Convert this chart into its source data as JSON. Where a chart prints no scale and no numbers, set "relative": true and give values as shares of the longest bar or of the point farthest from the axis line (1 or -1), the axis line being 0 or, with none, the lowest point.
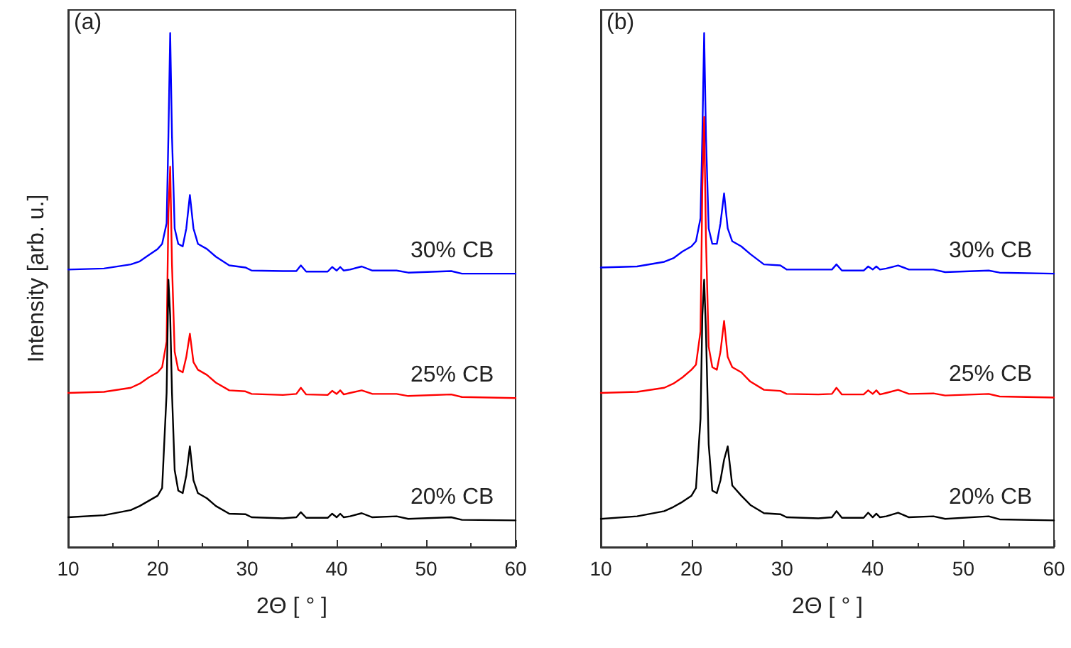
{
  "chart_data": [
    {
      "type": "line",
      "relative": true,
      "annotations": [
        "(a)"
      ],
      "xlabel": "2Θ [ ° ]",
      "ylabel": "Intensity [arb. u.]",
      "xlim": [
        10,
        60
      ],
      "xticks": [
        10,
        20,
        30,
        40,
        50,
        60
      ],
      "grid": false,
      "legend": false,
      "marker": "none",
      "line_style": "solid",
      "tick_labels": "x",
      "x": [
        10,
        14,
        17,
        18,
        19,
        20,
        20.5,
        21,
        21.2,
        21.4,
        21.6,
        21.9,
        22.3,
        22.8,
        23.2,
        23.6,
        24,
        24.5,
        25.5,
        26.5,
        28,
        29.8,
        30.5,
        34,
        35.5,
        36,
        36.6,
        39,
        39.5,
        40,
        40.4,
        40.8,
        41.5,
        42.8,
        44,
        46.7,
        48,
        52.8,
        54,
        60
      ],
      "series": [
        {
          "name": "30% CB",
          "color": "#0000ff",
          "values": [
            0.54,
            0.542,
            0.55,
            0.556,
            0.568,
            0.58,
            0.59,
            0.63,
            0.8,
            1,
            0.8,
            0.62,
            0.59,
            0.585,
            0.62,
            0.685,
            0.62,
            0.59,
            0.58,
            0.565,
            0.548,
            0.544,
            0.538,
            0.537,
            0.537,
            0.548,
            0.536,
            0.536,
            0.545,
            0.538,
            0.545,
            0.538,
            0.54,
            0.546,
            0.538,
            0.538,
            0.534,
            0.537,
            0.532,
            0.532
          ]
        },
        {
          "name": "25% CB",
          "color": "#ff0000",
          "values": [
            0.3,
            0.302,
            0.31,
            0.318,
            0.33,
            0.34,
            0.35,
            0.4,
            0.65,
            0.74,
            0.55,
            0.38,
            0.345,
            0.34,
            0.37,
            0.415,
            0.36,
            0.345,
            0.335,
            0.32,
            0.305,
            0.303,
            0.298,
            0.296,
            0.298,
            0.31,
            0.297,
            0.296,
            0.304,
            0.298,
            0.305,
            0.297,
            0.3,
            0.305,
            0.298,
            0.298,
            0.294,
            0.297,
            0.292,
            0.29
          ]
        },
        {
          "name": "20% CB",
          "color": "#000000",
          "values": [
            0.058,
            0.062,
            0.072,
            0.08,
            0.09,
            0.1,
            0.115,
            0.3,
            0.52,
            0.45,
            0.3,
            0.15,
            0.11,
            0.105,
            0.14,
            0.196,
            0.13,
            0.105,
            0.095,
            0.08,
            0.065,
            0.064,
            0.058,
            0.056,
            0.058,
            0.068,
            0.057,
            0.057,
            0.065,
            0.058,
            0.065,
            0.058,
            0.06,
            0.066,
            0.058,
            0.06,
            0.055,
            0.058,
            0.053,
            0.052
          ]
        }
      ]
    },
    {
      "type": "line",
      "relative": true,
      "annotations": [
        "(b)"
      ],
      "xlabel": "2Θ [ ° ]",
      "xlim": [
        10,
        60
      ],
      "xticks": [
        10,
        20,
        30,
        40,
        50,
        60
      ],
      "grid": false,
      "legend": false,
      "marker": "none",
      "line_style": "solid",
      "tick_labels": "x",
      "x": [
        10,
        14,
        17,
        18,
        19,
        20,
        20.5,
        21,
        21.2,
        21.4,
        21.6,
        21.9,
        22.3,
        22.8,
        23.2,
        23.6,
        24,
        24.5,
        25.5,
        26.5,
        28,
        29.8,
        30.5,
        34,
        35.5,
        36,
        36.6,
        39,
        39.5,
        40,
        40.4,
        40.8,
        41.5,
        42.8,
        44,
        46.7,
        48,
        52.8,
        54,
        60
      ],
      "series": [
        {
          "name": "30% CB",
          "color": "#0000ff",
          "values": [
            0.544,
            0.546,
            0.555,
            0.562,
            0.575,
            0.585,
            0.595,
            0.64,
            0.8,
            1,
            0.8,
            0.62,
            0.59,
            0.59,
            0.63,
            0.688,
            0.62,
            0.595,
            0.585,
            0.57,
            0.55,
            0.548,
            0.54,
            0.54,
            0.54,
            0.55,
            0.538,
            0.538,
            0.546,
            0.54,
            0.546,
            0.54,
            0.542,
            0.548,
            0.54,
            0.54,
            0.535,
            0.538,
            0.534,
            0.532
          ]
        },
        {
          "name": "25% CB",
          "color": "#ff0000",
          "values": [
            0.3,
            0.302,
            0.31,
            0.318,
            0.33,
            0.345,
            0.355,
            0.42,
            0.7,
            0.837,
            0.6,
            0.39,
            0.35,
            0.345,
            0.38,
            0.44,
            0.37,
            0.35,
            0.34,
            0.322,
            0.306,
            0.304,
            0.298,
            0.297,
            0.298,
            0.31,
            0.297,
            0.297,
            0.305,
            0.298,
            0.305,
            0.297,
            0.3,
            0.306,
            0.298,
            0.299,
            0.295,
            0.298,
            0.293,
            0.291
          ]
        },
        {
          "name": "20% CB",
          "color": "#000000",
          "values": [
            0.055,
            0.06,
            0.07,
            0.078,
            0.088,
            0.1,
            0.115,
            0.25,
            0.45,
            0.52,
            0.42,
            0.2,
            0.11,
            0.105,
            0.13,
            0.17,
            0.196,
            0.12,
            0.1,
            0.082,
            0.066,
            0.064,
            0.058,
            0.056,
            0.058,
            0.07,
            0.057,
            0.057,
            0.067,
            0.058,
            0.065,
            0.058,
            0.06,
            0.067,
            0.058,
            0.06,
            0.055,
            0.06,
            0.054,
            0.052
          ]
        }
      ]
    }
  ]
}
